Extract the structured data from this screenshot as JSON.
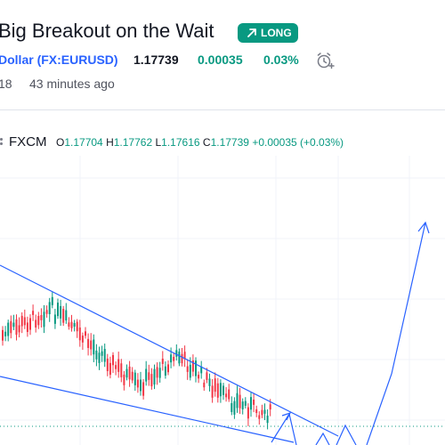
{
  "idea": {
    "title": "Big Breakout on the Wait",
    "badge": "LONG",
    "badge_color": "#089981"
  },
  "symbol": {
    "name_tail": "Dollar",
    "ticker": "(FX:EURUSD)",
    "price": "1.17739",
    "change": "0.00035",
    "change_pct": "0.03%"
  },
  "meta": {
    "count": "18",
    "time_ago": "43 minutes ago"
  },
  "legend": {
    "source": "FXCM",
    "o_label": "O",
    "o_value": "1.17704",
    "h_label": "H",
    "h_value": "1.17762",
    "l_label": "L",
    "l_value": "1.17616",
    "c_label": "C",
    "c_value": "1.17739",
    "change": "+0.00035 (+0.03%)"
  },
  "icons": {
    "badge": "arrow-up-right-icon",
    "alert": "alarm-clock-plus-icon"
  },
  "colors": {
    "up": "#089981",
    "down": "#f23645",
    "drawing": "#2962ff"
  }
}
